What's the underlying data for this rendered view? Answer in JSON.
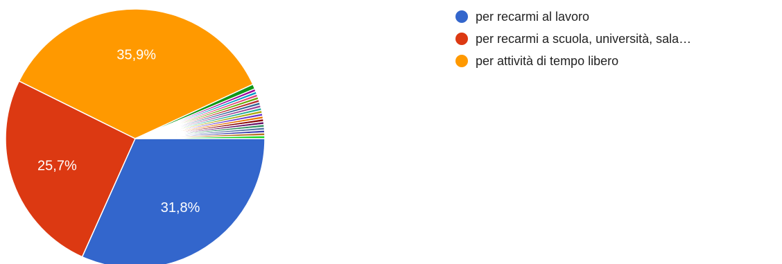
{
  "chart_data": {
    "type": "pie",
    "start": "3 o'clock",
    "direction": "clockwise",
    "slices": [
      {
        "label": "per recarmi al lavoro",
        "value": 31.8,
        "display": "31,8%",
        "color": "#3366cc"
      },
      {
        "label": "per recarmi a scuola, università, sala…",
        "value": 25.7,
        "display": "25,7%",
        "color": "#dc3912"
      },
      {
        "label": "per attività di tempo libero",
        "value": 35.9,
        "display": "35,9%",
        "color": "#ff9900"
      },
      {
        "label": "",
        "value": 0.6,
        "display": "",
        "color": "#109618"
      },
      {
        "label": "",
        "value": 0.35,
        "display": "",
        "color": "#990099"
      },
      {
        "label": "",
        "value": 0.35,
        "display": "",
        "color": "#0099c6"
      },
      {
        "label": "",
        "value": 0.35,
        "display": "",
        "color": "#dd4477"
      },
      {
        "label": "",
        "value": 0.35,
        "display": "",
        "color": "#66aa00"
      },
      {
        "label": "",
        "value": 0.35,
        "display": "",
        "color": "#b82e2e"
      },
      {
        "label": "",
        "value": 0.35,
        "display": "",
        "color": "#316395"
      },
      {
        "label": "",
        "value": 0.35,
        "display": "",
        "color": "#994499"
      },
      {
        "label": "",
        "value": 0.35,
        "display": "",
        "color": "#22aa99"
      },
      {
        "label": "",
        "value": 0.35,
        "display": "",
        "color": "#aaaa11"
      },
      {
        "label": "",
        "value": 0.35,
        "display": "",
        "color": "#6633cc"
      },
      {
        "label": "",
        "value": 0.35,
        "display": "",
        "color": "#e67300"
      },
      {
        "label": "",
        "value": 0.35,
        "display": "",
        "color": "#8b0707"
      },
      {
        "label": "",
        "value": 0.35,
        "display": "",
        "color": "#651067"
      },
      {
        "label": "",
        "value": 0.35,
        "display": "",
        "color": "#329262"
      },
      {
        "label": "",
        "value": 0.35,
        "display": "",
        "color": "#5574a6"
      },
      {
        "label": "",
        "value": 0.35,
        "display": "",
        "color": "#3b3eac"
      },
      {
        "label": "",
        "value": 0.35,
        "display": "",
        "color": "#b77322"
      },
      {
        "label": "",
        "value": 0.35,
        "display": "",
        "color": "#16d620"
      }
    ],
    "legend": {
      "placement": "right",
      "entries": [
        {
          "label": "per recarmi al lavoro",
          "color": "#3366cc"
        },
        {
          "label": "per recarmi a scuola, università, sala…",
          "color": "#dc3912"
        },
        {
          "label": "per attività di tempo libero",
          "color": "#ff9900"
        }
      ]
    }
  }
}
